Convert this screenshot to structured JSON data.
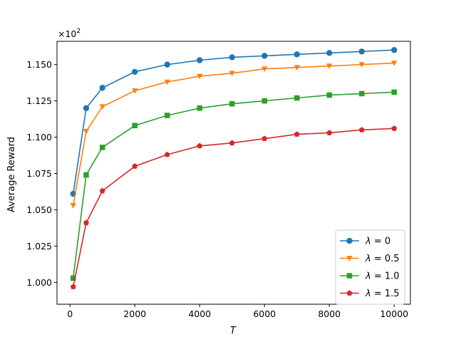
{
  "chart_data": {
    "type": "line",
    "title": "",
    "xlabel": "T",
    "ylabel": "Average Reward",
    "offset_text": "×10",
    "offset_exponent": "2",
    "xlim": [
      -400,
      10500
    ],
    "ylim": [
      0.985,
      1.166
    ],
    "xticks": [
      0,
      2000,
      4000,
      6000,
      8000,
      10000
    ],
    "xtick_labels": [
      "0",
      "2000",
      "4000",
      "6000",
      "8000",
      "10000"
    ],
    "yticks": [
      1.0,
      1.025,
      1.05,
      1.075,
      1.1,
      1.125,
      1.15
    ],
    "ytick_labels": [
      "1.000",
      "1.025",
      "1.050",
      "1.075",
      "1.100",
      "1.125",
      "1.150"
    ],
    "grid": false,
    "legend_position": "bottom-right",
    "x": [
      100,
      500,
      1000,
      2000,
      3000,
      4000,
      5000,
      6000,
      7000,
      8000,
      9000,
      10000
    ],
    "series": [
      {
        "name": "λ = 0",
        "label_main": "λ",
        "label_rest": " = 0",
        "color": "#1f77b4",
        "marker": "circle",
        "values": [
          1.061,
          1.12,
          1.134,
          1.145,
          1.15,
          1.153,
          1.155,
          1.156,
          1.157,
          1.158,
          1.159,
          1.16
        ]
      },
      {
        "name": "λ = 0.5",
        "label_main": "λ",
        "label_rest": " = 0.5",
        "color": "#ff7f0e",
        "marker": "triangle-down",
        "values": [
          1.053,
          1.104,
          1.121,
          1.132,
          1.138,
          1.142,
          1.144,
          1.147,
          1.148,
          1.149,
          1.15,
          1.151
        ]
      },
      {
        "name": "λ = 1.0",
        "label_main": "λ",
        "label_rest": " = 1.0",
        "color": "#2ca02c",
        "marker": "square",
        "values": [
          1.003,
          1.074,
          1.093,
          1.108,
          1.115,
          1.12,
          1.123,
          1.125,
          1.127,
          1.129,
          1.13,
          1.131
        ]
      },
      {
        "name": "λ = 1.5",
        "label_main": "λ",
        "label_rest": " = 1.5",
        "color": "#d62728",
        "marker": "pentagon",
        "values": [
          0.997,
          1.041,
          1.063,
          1.08,
          1.088,
          1.094,
          1.096,
          1.099,
          1.102,
          1.103,
          1.105,
          1.106
        ]
      }
    ]
  }
}
